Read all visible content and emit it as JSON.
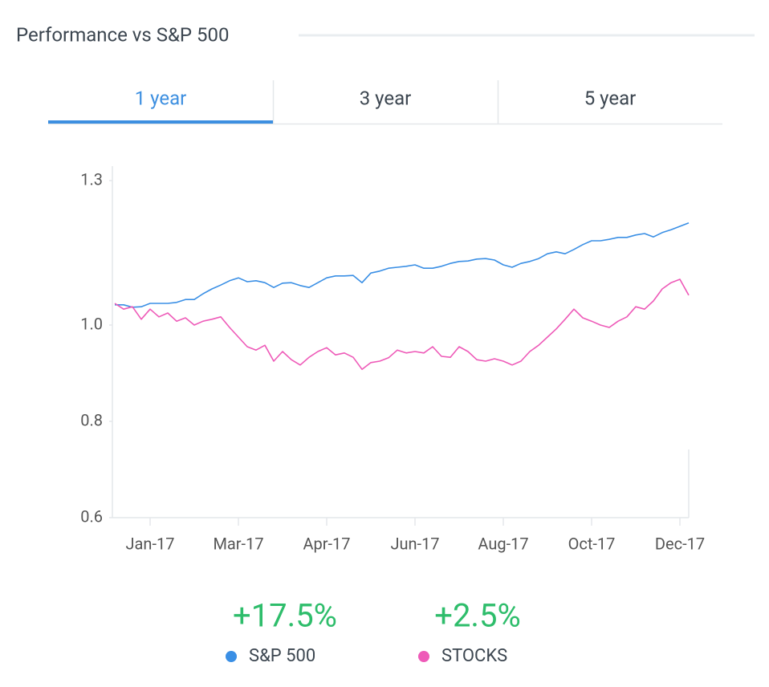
{
  "header": {
    "title": "Performance vs S&P 500"
  },
  "tabs": {
    "labels": [
      "1 year",
      "3 year",
      "5 year"
    ],
    "active": 0
  },
  "chart_data": {
    "type": "line",
    "categories": [
      null,
      null,
      null,
      null,
      "Jan-17",
      null,
      null,
      null,
      null,
      null,
      null,
      null,
      null,
      null,
      "Mar-17",
      null,
      null,
      null,
      null,
      null,
      null,
      null,
      null,
      null,
      "Apr-17",
      null,
      null,
      null,
      null,
      null,
      null,
      null,
      null,
      null,
      "Jun-17",
      null,
      null,
      null,
      null,
      null,
      null,
      null,
      null,
      null,
      "Aug-17",
      null,
      null,
      null,
      null,
      null,
      null,
      null,
      null,
      null,
      "Oct-17",
      null,
      null,
      null,
      null,
      null,
      null,
      null,
      null,
      null,
      "Dec-17",
      null
    ],
    "ylim": [
      0.6,
      1.33
    ],
    "yticks": [
      1.3,
      {
        "value": 1,
        "label": "1.0"
      },
      0.8,
      0.6
    ],
    "series": [
      {
        "name": "S&P 500",
        "color": "#3a8fe5",
        "total_return": 17.5,
        "total_return_label": "+17.5%",
        "values": [
          1.042,
          1.042,
          1.037,
          1.038,
          1.045,
          1.045,
          1.045,
          1.047,
          1.053,
          1.053,
          1.065,
          1.075,
          1.083,
          1.092,
          1.098,
          1.09,
          1.092,
          1.088,
          1.078,
          1.087,
          1.088,
          1.082,
          1.078,
          1.088,
          1.098,
          1.102,
          1.102,
          1.103,
          1.088,
          1.108,
          1.112,
          1.118,
          1.12,
          1.122,
          1.125,
          1.118,
          1.118,
          1.122,
          1.128,
          1.132,
          1.133,
          1.137,
          1.138,
          1.135,
          1.125,
          1.12,
          1.128,
          1.132,
          1.138,
          1.148,
          1.152,
          1.148,
          1.157,
          1.167,
          1.175,
          1.175,
          1.178,
          1.182,
          1.182,
          1.187,
          1.19,
          1.183,
          1.192,
          1.198,
          1.205,
          1.212
        ]
      },
      {
        "name": "STOCKS",
        "color": "#ee5ab8",
        "total_return": 2.5,
        "total_return_label": "+2.5%",
        "values": [
          1.045,
          1.033,
          1.038,
          1.012,
          1.033,
          1.017,
          1.025,
          1.008,
          1.015,
          1.0,
          1.008,
          1.012,
          1.017,
          0.995,
          0.975,
          0.955,
          0.948,
          0.958,
          0.925,
          0.945,
          0.928,
          0.917,
          0.933,
          0.945,
          0.953,
          0.938,
          0.942,
          0.933,
          0.908,
          0.922,
          0.925,
          0.932,
          0.948,
          0.942,
          0.945,
          0.942,
          0.955,
          0.935,
          0.933,
          0.955,
          0.945,
          0.928,
          0.925,
          0.93,
          0.925,
          0.917,
          0.925,
          0.945,
          0.958,
          0.975,
          0.992,
          1.012,
          1.033,
          1.015,
          1.008,
          1.0,
          0.995,
          1.008,
          1.017,
          1.038,
          1.033,
          1.05,
          1.075,
          1.088,
          1.095,
          1.062
        ]
      }
    ],
    "summary_color": "#2ebd6b"
  }
}
